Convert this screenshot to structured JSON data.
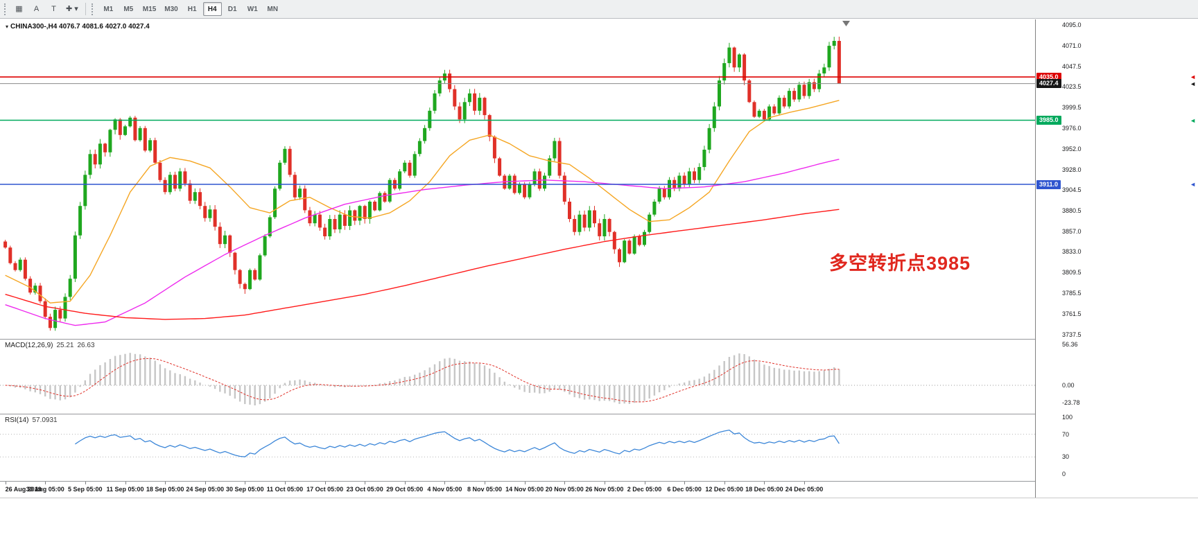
{
  "toolbar": {
    "icons": [
      {
        "name": "chart-mode-icon",
        "glyph": "▦"
      },
      {
        "name": "auto-scroll-icon",
        "glyph": "A"
      },
      {
        "name": "text-label-tool-icon",
        "glyph": "T"
      },
      {
        "name": "crosshair-dropdown-icon",
        "glyph": "✚ ▾"
      }
    ],
    "timeframes": [
      {
        "label": "M1",
        "active": false
      },
      {
        "label": "M5",
        "active": false
      },
      {
        "label": "M15",
        "active": false
      },
      {
        "label": "M30",
        "active": false
      },
      {
        "label": "H1",
        "active": false
      },
      {
        "label": "H4",
        "active": true
      },
      {
        "label": "D1",
        "active": false
      },
      {
        "label": "W1",
        "active": false
      },
      {
        "label": "MN",
        "active": false
      }
    ]
  },
  "chart": {
    "title": "CHINA300-,H4 4076.7 4081.6 4027.0 4027.4",
    "symbol": "CHINA300-",
    "period": "H4",
    "ohlc_display": {
      "open": "4076.7",
      "high": "4081.6",
      "low": "4027.0",
      "close": "4027.4"
    },
    "annotation": {
      "text": "多空转折点3985",
      "color": "#e0271e"
    },
    "hlines": [
      {
        "price": 4035.0,
        "label": "4035.0",
        "color": "#dd0000",
        "tag_bg": "#dd0000",
        "width": 1.6
      },
      {
        "price": 4027.4,
        "label": "4027.4",
        "color": "#8a8a8a",
        "tag_bg": "#161616",
        "width": 1
      },
      {
        "price": 3985.0,
        "label": "3985.0",
        "color": "#00a95c",
        "tag_bg": "#00a95c",
        "width": 1.6
      },
      {
        "price": 3911.0,
        "label": "3911.0",
        "color": "#2f55cf",
        "tag_bg": "#2f55cf",
        "width": 1.6
      }
    ],
    "price_axis": {
      "min": 3732.5,
      "max": 4101.5,
      "ticks": [
        4095.0,
        4071.0,
        4047.5,
        4023.5,
        3999.5,
        3976.0,
        3952.0,
        3928.0,
        3904.5,
        3880.5,
        3857.0,
        3833.0,
        3809.5,
        3785.5,
        3761.5,
        3737.5
      ]
    },
    "time_axis": [
      "26 Aug 2019",
      "30 Aug 05:00",
      "5 Sep 05:00",
      "11 Sep 05:00",
      "18 Sep 05:00",
      "24 Sep 05:00",
      "30 Sep 05:00",
      "11 Oct 05:00",
      "17 Oct 05:00",
      "23 Oct 05:00",
      "29 Oct 05:00",
      "4 Nov 05:00",
      "8 Nov 05:00",
      "14 Nov 05:00",
      "20 Nov 05:00",
      "26 Nov 05:00",
      "2 Dec 05:00",
      "6 Dec 05:00",
      "12 Dec 05:00",
      "18 Dec 05:00",
      "24 Dec 05:00"
    ]
  },
  "macd": {
    "label": "MACD(12,26,9)",
    "value": "25.21",
    "signal_value": "26.63",
    "axis": [
      56.36,
      0,
      -23.78
    ]
  },
  "rsi": {
    "label": "RSI(14)",
    "value": "57.0931",
    "axis": [
      100,
      70,
      30,
      0
    ],
    "levels": [
      70,
      30
    ]
  },
  "chart_data": {
    "type": "candlestick",
    "symbol": "CHINA300-",
    "period": "H4",
    "title": "CHINA300-,H4",
    "first_open": 3845,
    "closes": [
      3838,
      3820,
      3812,
      3824,
      3802,
      3786,
      3794,
      3776,
      3758,
      3745,
      3766,
      3756,
      3781,
      3802,
      3852,
      3886,
      3922,
      3946,
      3934,
      3958,
      3948,
      3974,
      3986,
      3968,
      3978,
      3988,
      3962,
      3976,
      3950,
      3962,
      3936,
      3916,
      3902,
      3922,
      3906,
      3926,
      3912,
      3892,
      3902,
      3886,
      3872,
      3882,
      3862,
      3842,
      3852,
      3832,
      3812,
      3796,
      3790,
      3812,
      3801,
      3829,
      3851,
      3873,
      3906,
      3936,
      3952,
      3922,
      3896,
      3906,
      3881,
      3866,
      3876,
      3861,
      3851,
      3871,
      3859,
      3876,
      3863,
      3881,
      3869,
      3886,
      3871,
      3891,
      3881,
      3901,
      3891,
      3916,
      3906,
      3926,
      3936,
      3921,
      3946,
      3961,
      3976,
      3996,
      4016,
      4031,
      4039,
      4021,
      4001,
      3986,
      4006,
      4016,
      3996,
      4011,
      3991,
      3966,
      3941,
      3921,
      3906,
      3921,
      3901,
      3911,
      3896,
      3911,
      3926,
      3906,
      3921,
      3941,
      3961,
      3921,
      3891,
      3871,
      3856,
      3876,
      3861,
      3881,
      3866,
      3851,
      3871,
      3856,
      3836,
      3821,
      3846,
      3831,
      3851,
      3841,
      3856,
      3876,
      3891,
      3906,
      3896,
      3916,
      3906,
      3921,
      3911,
      3926,
      3916,
      3931,
      3951,
      3976,
      4001,
      4031,
      4051,
      4069,
      4046,
      4061,
      4031,
      4006,
      3989,
      3996,
      3986,
      4001,
      3993,
      4011,
      4001,
      4019,
      4009,
      4026,
      4013,
      4029,
      4021,
      4039,
      4046,
      4071,
      4076.7,
      4027.4
    ],
    "last_bar": {
      "open": 4076.7,
      "high": 4081.6,
      "low": 4027.0,
      "close": 4027.4
    },
    "labels_every_bars": 8,
    "ma_fast_anchors": [
      [
        0,
        3806
      ],
      [
        5,
        3792
      ],
      [
        9,
        3774
      ],
      [
        13,
        3776
      ],
      [
        17,
        3806
      ],
      [
        21,
        3852
      ],
      [
        25,
        3902
      ],
      [
        29,
        3932
      ],
      [
        33,
        3942
      ],
      [
        37,
        3938
      ],
      [
        41,
        3930
      ],
      [
        45,
        3908
      ],
      [
        49,
        3884
      ],
      [
        53,
        3878
      ],
      [
        57,
        3892
      ],
      [
        61,
        3896
      ],
      [
        65,
        3884
      ],
      [
        69,
        3874
      ],
      [
        73,
        3872
      ],
      [
        77,
        3878
      ],
      [
        81,
        3892
      ],
      [
        85,
        3914
      ],
      [
        89,
        3944
      ],
      [
        93,
        3962
      ],
      [
        97,
        3968
      ],
      [
        101,
        3958
      ],
      [
        105,
        3944
      ],
      [
        109,
        3938
      ],
      [
        113,
        3934
      ],
      [
        117,
        3918
      ],
      [
        121,
        3900
      ],
      [
        125,
        3882
      ],
      [
        129,
        3868
      ],
      [
        133,
        3870
      ],
      [
        137,
        3884
      ],
      [
        141,
        3902
      ],
      [
        145,
        3938
      ],
      [
        149,
        3972
      ],
      [
        153,
        3988
      ],
      [
        157,
        3994
      ],
      [
        161,
        3999
      ],
      [
        167,
        4008
      ]
    ],
    "ma_mid_anchors": [
      [
        0,
        3772
      ],
      [
        8,
        3756
      ],
      [
        14,
        3748
      ],
      [
        20,
        3752
      ],
      [
        28,
        3774
      ],
      [
        36,
        3804
      ],
      [
        44,
        3830
      ],
      [
        52,
        3852
      ],
      [
        60,
        3872
      ],
      [
        68,
        3888
      ],
      [
        76,
        3898
      ],
      [
        84,
        3905
      ],
      [
        92,
        3910
      ],
      [
        100,
        3914
      ],
      [
        108,
        3916
      ],
      [
        116,
        3914
      ],
      [
        124,
        3910
      ],
      [
        132,
        3906
      ],
      [
        140,
        3908
      ],
      [
        148,
        3914
      ],
      [
        156,
        3924
      ],
      [
        164,
        3936
      ],
      [
        167,
        3940
      ]
    ],
    "ma_slow_anchors": [
      [
        0,
        3784
      ],
      [
        8,
        3770
      ],
      [
        16,
        3762
      ],
      [
        24,
        3757
      ],
      [
        32,
        3755
      ],
      [
        40,
        3756
      ],
      [
        48,
        3760
      ],
      [
        56,
        3768
      ],
      [
        64,
        3776
      ],
      [
        72,
        3784
      ],
      [
        80,
        3794
      ],
      [
        88,
        3805
      ],
      [
        96,
        3816
      ],
      [
        104,
        3826
      ],
      [
        112,
        3836
      ],
      [
        120,
        3845
      ],
      [
        128,
        3852
      ],
      [
        136,
        3858
      ],
      [
        144,
        3864
      ],
      [
        152,
        3870
      ],
      [
        160,
        3877
      ],
      [
        167,
        3882
      ]
    ],
    "macd_params": [
      12,
      26,
      9
    ],
    "rsi_period": 14,
    "colors": {
      "up": "#1fa71f",
      "down": "#e03028",
      "ma_fast": "#f5a623",
      "ma_mid": "#ee2bee",
      "ma_slow": "#ff1a1a",
      "macd_hist": "#c6c6c6",
      "macd_signal": "#e03028",
      "rsi_line": "#3b86d8"
    }
  }
}
